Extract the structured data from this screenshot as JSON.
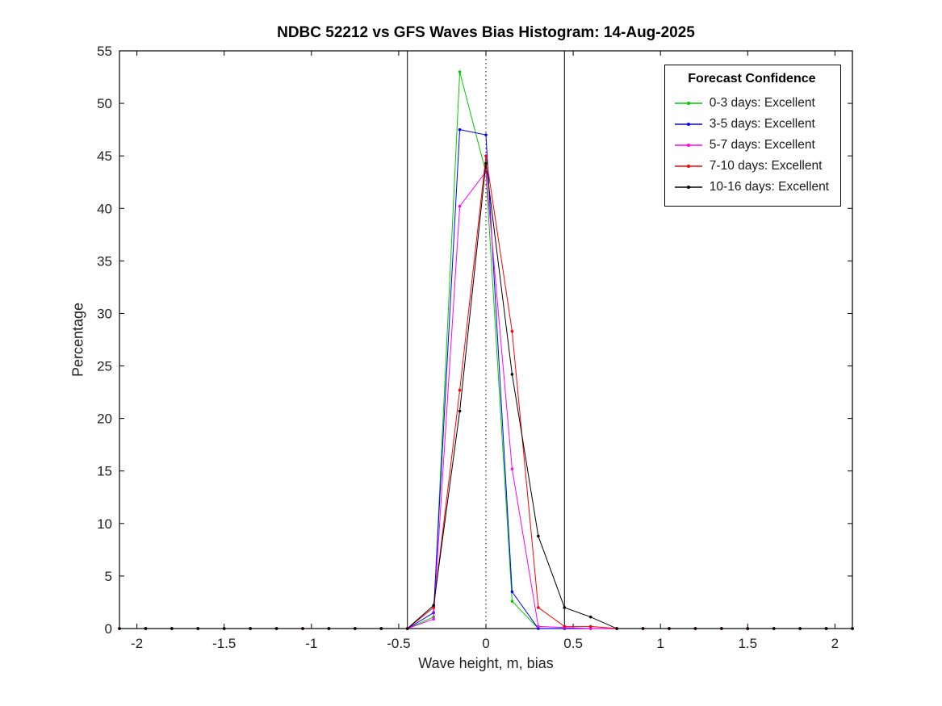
{
  "figure": {
    "title": "NDBC 52212 vs GFS Waves Bias Histogram: 14-Aug-2025"
  },
  "chart_data": {
    "type": "line",
    "title": "NDBC 52212 vs GFS Waves Bias Histogram: 14-Aug-2025",
    "xlabel": "Wave height, m, bias",
    "ylabel": "Percentage",
    "xlim": [
      -2.1,
      2.1
    ],
    "ylim": [
      0,
      55
    ],
    "xticks": [
      -2,
      -1.5,
      -1,
      -0.5,
      0,
      0.5,
      1,
      1.5,
      2
    ],
    "yticks": [
      0,
      5,
      10,
      15,
      20,
      25,
      30,
      35,
      40,
      45,
      50,
      55
    ],
    "grid": false,
    "x": [
      -2.1,
      -1.95,
      -1.8,
      -1.65,
      -1.5,
      -1.35,
      -1.2,
      -1.05,
      -0.9,
      -0.75,
      -0.6,
      -0.45,
      -0.3,
      -0.15,
      0,
      0.15,
      0.3,
      0.45,
      0.6,
      0.75,
      0.9,
      1.05,
      1.2,
      1.35,
      1.5,
      1.65,
      1.8,
      1.95,
      2.1
    ],
    "series": [
      {
        "name": "0-3 days: Excellent",
        "color": "#00cc00",
        "values": [
          0,
          0,
          0,
          0,
          0,
          0,
          0,
          0,
          0,
          0,
          0,
          0,
          1.1,
          53,
          43.4,
          2.6,
          0,
          0,
          0,
          0,
          0,
          0,
          0,
          0,
          0,
          0,
          0,
          0,
          0
        ]
      },
      {
        "name": "3-5 days: Excellent",
        "color": "#0000ff",
        "values": [
          0,
          0,
          0,
          0,
          0,
          0,
          0,
          0,
          0,
          0,
          0,
          0,
          1.5,
          47.5,
          47,
          3.5,
          0,
          0,
          0,
          0,
          0,
          0,
          0,
          0,
          0,
          0,
          0,
          0,
          0
        ]
      },
      {
        "name": "5-7 days: Excellent",
        "color": "#ff00ff",
        "values": [
          0,
          0,
          0,
          0,
          0,
          0,
          0,
          0,
          0,
          0,
          0,
          0,
          0.9,
          40.2,
          43.5,
          15.2,
          0.2,
          0.1,
          0,
          0,
          0,
          0,
          0,
          0,
          0,
          0,
          0,
          0,
          0
        ]
      },
      {
        "name": "7-10 days: Excellent",
        "color": "#ff0000",
        "values": [
          0,
          0,
          0,
          0,
          0,
          0,
          0,
          0,
          0,
          0,
          0,
          0,
          2,
          22.7,
          45,
          28.3,
          2,
          0.2,
          0.2,
          0,
          0,
          0,
          0,
          0,
          0,
          0,
          0,
          0,
          0
        ]
      },
      {
        "name": "10-16 days: Excellent",
        "color": "#000000",
        "values": [
          0,
          0,
          0,
          0,
          0,
          0,
          0,
          0,
          0,
          0,
          0,
          0,
          2.2,
          20.7,
          44.3,
          24.2,
          8.8,
          2,
          1.1,
          0,
          0,
          0,
          0,
          0,
          0,
          0,
          0,
          0,
          0
        ]
      }
    ],
    "vlines": [
      {
        "x": -0.45,
        "style": "solid"
      },
      {
        "x": 0,
        "style": "dotted"
      },
      {
        "x": 0.45,
        "style": "solid"
      }
    ],
    "legend": {
      "title": "Forecast Confidence",
      "position": "top-right"
    }
  }
}
